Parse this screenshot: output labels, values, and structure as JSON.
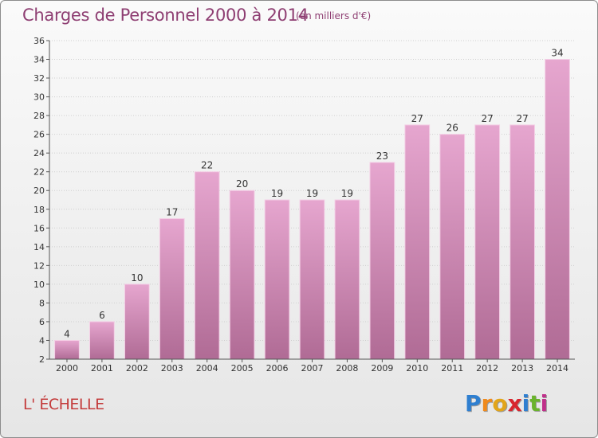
{
  "header": {
    "title": "Charges de Personnel 2000 à 2014",
    "subtitle": "(en milliers d'€)"
  },
  "footer": {
    "commune": "L' ÉCHELLE",
    "logo_letters": [
      "P",
      "r",
      "o",
      "x",
      "i",
      "t",
      "i"
    ],
    "logo_colors": [
      "#2f7fd0",
      "#f08a1c",
      "#e2a51a",
      "#d8262f",
      "#2f7fd0",
      "#6ab32d",
      "#c02f8a"
    ]
  },
  "colors": {
    "bar_top": "#e6a6cf",
    "bar_bottom": "#b06b95",
    "bar_edge": "#f4cfe6",
    "grid": "#cfcfcf",
    "axis": "#555555"
  },
  "chart_data": {
    "type": "bar",
    "categories": [
      "2000",
      "2001",
      "2002",
      "2003",
      "2004",
      "2005",
      "2006",
      "2007",
      "2008",
      "2009",
      "2010",
      "2011",
      "2012",
      "2013",
      "2014"
    ],
    "values": [
      4,
      6,
      10,
      17,
      22,
      20,
      19,
      19,
      19,
      23,
      27,
      26,
      27,
      27,
      34
    ],
    "title": "Charges de Personnel 2000 à 2014",
    "ylim": [
      2,
      36
    ],
    "yticks": [
      2,
      4,
      6,
      8,
      10,
      12,
      14,
      16,
      18,
      20,
      22,
      24,
      26,
      28,
      30,
      32,
      34,
      36
    ],
    "grid": true,
    "data_labels": true
  }
}
